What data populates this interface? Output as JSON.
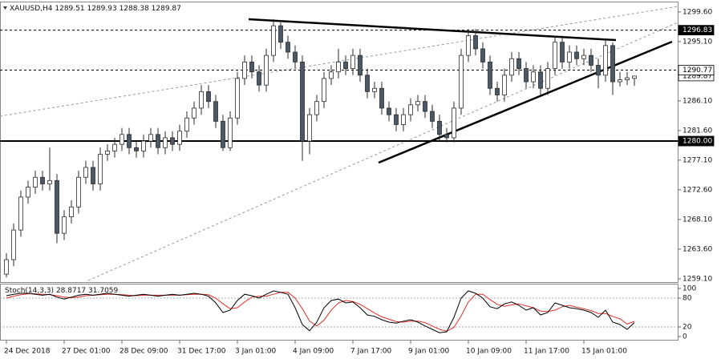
{
  "chart_data": {
    "type": "candlestick",
    "title": "XAUUSD,H4",
    "categories": [
      "24 Dec 2018",
      null,
      null,
      null,
      null,
      null,
      null,
      null,
      "27 Dec 01:00",
      null,
      null,
      null,
      null,
      null,
      null,
      null,
      "28 Dec 09:00",
      null,
      null,
      null,
      null,
      null,
      null,
      null,
      "31 Dec 17:00",
      null,
      null,
      null,
      null,
      null,
      null,
      null,
      "3 Jan 01:00",
      null,
      null,
      null,
      null,
      null,
      null,
      null,
      "4 Jan 09:00",
      null,
      null,
      null,
      null,
      null,
      null,
      null,
      "7 Jan 17:00",
      null,
      null,
      null,
      null,
      null,
      null,
      null,
      "9 Jan 01:00",
      null,
      null,
      null,
      null,
      null,
      null,
      null,
      "10 Jan 09:00",
      null,
      null,
      null,
      null,
      null,
      null,
      null,
      "11 Jan 17:00",
      null,
      null,
      null,
      null,
      null,
      null,
      null,
      "15 Jan 01:00",
      null,
      null,
      null,
      null,
      null,
      null,
      null
    ],
    "open": [
      1259.8,
      1262.0,
      1266.5,
      1271.5,
      1273.0,
      1274.5,
      1273.5,
      1274.0,
      1266.0,
      1268.5,
      1270.0,
      1274.5,
      1276.0,
      1273.5,
      1278.0,
      1278.5,
      1279.5,
      1281.0,
      1279.0,
      1278.5,
      1280.0,
      1281.0,
      1279.0,
      1280.5,
      1279.5,
      1281.5,
      1283.5,
      1285.0,
      1287.5,
      1286.0,
      1283.0,
      1279.0,
      1283.5,
      1289.5,
      1292.0,
      1290.5,
      1288.5,
      1293.0,
      1297.5,
      1295.0,
      1293.5,
      1292.0,
      1280.0,
      1284.0,
      1286.0,
      1289.5,
      1290.5,
      1292.0,
      1291.0,
      1293.0,
      1290.0,
      1287.5,
      1288.0,
      1285.0,
      1284.0,
      1282.5,
      1284.0,
      1285.5,
      1286.0,
      1284.5,
      1283.0,
      1281.0,
      1280.5,
      1285.0,
      1293.0,
      1296.0,
      1294.0,
      1292.0,
      1288.0,
      1287.0,
      1290.0,
      1292.5,
      1291.0,
      1289.0,
      1290.5,
      1288.0,
      1291.0,
      1295.0,
      1292.0,
      1293.5,
      1292.5,
      1293.0,
      1291.5,
      1290.0,
      1294.5,
      1289.0,
      1289.3,
      1289.51
    ],
    "high": [
      1263.0,
      1267.5,
      1272.5,
      1274.0,
      1275.5,
      1275.5,
      1279.0,
      1275.0,
      1269.5,
      1271.0,
      1275.5,
      1277.0,
      1277.0,
      1279.0,
      1279.5,
      1280.5,
      1282.0,
      1282.0,
      1280.0,
      1281.0,
      1282.0,
      1282.0,
      1281.5,
      1281.5,
      1282.5,
      1284.5,
      1286.0,
      1288.5,
      1288.5,
      1287.0,
      1284.0,
      1284.5,
      1290.5,
      1293.0,
      1293.0,
      1291.5,
      1294.0,
      1298.5,
      1298.0,
      1296.0,
      1294.5,
      1293.0,
      1285.0,
      1287.0,
      1290.5,
      1291.5,
      1294.0,
      1293.0,
      1294.0,
      1294.0,
      1291.0,
      1289.0,
      1289.0,
      1286.0,
      1285.0,
      1285.0,
      1286.5,
      1287.0,
      1287.0,
      1285.5,
      1284.0,
      1282.0,
      1286.0,
      1294.0,
      1297.0,
      1297.0,
      1295.0,
      1293.0,
      1289.0,
      1291.0,
      1293.5,
      1293.5,
      1292.0,
      1291.5,
      1291.5,
      1292.0,
      1296.0,
      1296.0,
      1294.5,
      1294.5,
      1294.0,
      1294.0,
      1292.5,
      1295.5,
      1295.0,
      1290.5,
      1290.5,
      1289.93
    ],
    "low": [
      1259.3,
      1261.0,
      1265.5,
      1270.5,
      1272.0,
      1272.5,
      1272.5,
      1264.5,
      1265.0,
      1267.5,
      1269.0,
      1273.5,
      1272.5,
      1272.5,
      1277.0,
      1277.5,
      1278.5,
      1278.0,
      1277.5,
      1277.5,
      1279.0,
      1278.0,
      1278.0,
      1278.5,
      1278.5,
      1280.5,
      1282.5,
      1284.0,
      1285.0,
      1282.0,
      1278.5,
      1278.5,
      1282.5,
      1288.5,
      1289.5,
      1287.5,
      1287.5,
      1292.0,
      1294.0,
      1292.5,
      1291.0,
      1277.0,
      1278.0,
      1283.0,
      1285.0,
      1288.5,
      1289.5,
      1290.0,
      1290.0,
      1289.0,
      1286.5,
      1286.5,
      1284.0,
      1283.0,
      1281.5,
      1281.5,
      1283.0,
      1284.5,
      1283.5,
      1282.0,
      1280.0,
      1279.8,
      1279.8,
      1284.0,
      1292.0,
      1293.0,
      1291.0,
      1287.0,
      1286.0,
      1286.0,
      1289.0,
      1290.0,
      1288.0,
      1288.0,
      1287.0,
      1287.0,
      1290.0,
      1291.0,
      1291.0,
      1291.5,
      1291.5,
      1290.5,
      1288.0,
      1289.0,
      1287.0,
      1288.3,
      1288.5,
      1288.38
    ],
    "close": [
      1262.0,
      1266.5,
      1271.5,
      1273.0,
      1274.5,
      1273.5,
      1274.0,
      1266.0,
      1268.5,
      1270.0,
      1274.5,
      1276.0,
      1273.5,
      1278.0,
      1278.5,
      1279.5,
      1281.0,
      1279.0,
      1278.5,
      1280.0,
      1281.0,
      1279.0,
      1280.5,
      1279.5,
      1281.5,
      1283.5,
      1285.0,
      1287.5,
      1286.0,
      1283.0,
      1279.0,
      1283.5,
      1289.5,
      1292.0,
      1290.5,
      1288.5,
      1293.0,
      1297.5,
      1295.0,
      1293.5,
      1292.0,
      1280.0,
      1284.0,
      1286.0,
      1289.5,
      1290.5,
      1292.0,
      1291.0,
      1293.0,
      1290.0,
      1287.5,
      1288.0,
      1285.0,
      1284.0,
      1282.5,
      1284.0,
      1285.5,
      1286.0,
      1284.5,
      1283.0,
      1281.0,
      1280.5,
      1285.0,
      1293.0,
      1296.0,
      1294.0,
      1292.0,
      1288.0,
      1287.0,
      1290.0,
      1292.5,
      1291.0,
      1289.0,
      1290.5,
      1288.0,
      1291.0,
      1295.0,
      1292.0,
      1293.5,
      1292.5,
      1293.0,
      1291.5,
      1290.0,
      1294.5,
      1289.0,
      1289.3,
      1289.6,
      1289.87
    ],
    "colors": {
      "up": "#ffffff",
      "down": "#4b5865",
      "outline": "#2b2b2b"
    },
    "ylim": [
      1258.6,
      1300.8
    ],
    "yticks": [
      {
        "value": 1299.6,
        "label": "1299.60"
      },
      {
        "value": 1295.1,
        "label": "1295.10"
      },
      {
        "value": 1290.6,
        "label": "1290.60"
      },
      {
        "value": 1286.1,
        "label": "1286.10"
      },
      {
        "value": 1281.6,
        "label": "1281.60"
      },
      {
        "value": 1277.1,
        "label": "1277.10"
      },
      {
        "value": 1272.6,
        "label": "1272.60"
      },
      {
        "value": 1268.1,
        "label": "1268.10"
      },
      {
        "value": 1263.6,
        "label": "1263.60"
      },
      {
        "value": 1259.1,
        "label": "1259.10"
      }
    ],
    "levels": [
      {
        "value": 1296.83,
        "style": "dashed"
      },
      {
        "value": 1290.77,
        "style": "dashed"
      },
      {
        "value": 1280,
        "label": "1280.00",
        "style": "solid"
      }
    ],
    "stoch": {
      "title": "Stoch(14,3,3)",
      "main_color": "#000000",
      "signal_color": "#e0302a",
      "ylim": [
        0,
        100
      ],
      "yticks": [
        0,
        20,
        80,
        100
      ],
      "levels": [
        20,
        80
      ],
      "main": [
        85,
        88,
        90,
        90,
        88,
        86,
        88,
        82,
        78,
        82,
        86,
        88,
        86,
        88,
        90,
        88,
        86,
        84,
        86,
        88,
        86,
        84,
        86,
        88,
        86,
        88,
        90,
        88,
        84,
        70,
        50,
        55,
        75,
        88,
        85,
        80,
        88,
        95,
        92,
        88,
        60,
        25,
        12,
        30,
        60,
        75,
        78,
        70,
        72,
        60,
        45,
        42,
        35,
        30,
        28,
        32,
        35,
        30,
        22,
        15,
        8,
        10,
        40,
        80,
        95,
        90,
        80,
        62,
        58,
        68,
        72,
        65,
        55,
        60,
        45,
        50,
        70,
        65,
        60,
        58,
        55,
        50,
        40,
        55,
        30,
        25,
        15,
        28.8717
      ],
      "signal": [
        80,
        84,
        87,
        89,
        89,
        88,
        87,
        85,
        82,
        81,
        82,
        85,
        86,
        87,
        88,
        88,
        87,
        86,
        85,
        86,
        86,
        86,
        86,
        86,
        86,
        87,
        88,
        88,
        87,
        80,
        68,
        58,
        60,
        72,
        82,
        84,
        84,
        88,
        92,
        92,
        80,
        58,
        32,
        22,
        34,
        55,
        70,
        75,
        73,
        67,
        58,
        49,
        41,
        36,
        31,
        30,
        32,
        32,
        29,
        22,
        15,
        11,
        19,
        43,
        72,
        88,
        88,
        77,
        67,
        63,
        66,
        68,
        64,
        60,
        53,
        52,
        55,
        62,
        65,
        61,
        58,
        54,
        48,
        48,
        42,
        37,
        26,
        31.7059
      ]
    }
  }
}
